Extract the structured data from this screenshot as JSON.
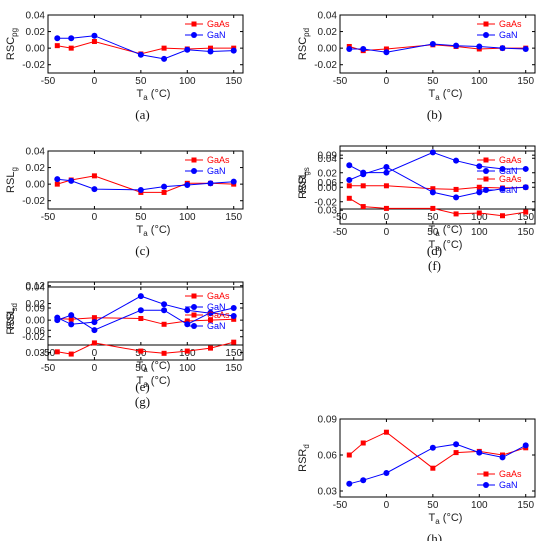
{
  "colors": {
    "GaAs": "#ff0000",
    "GaN": "#0000ff"
  },
  "chart_data": [
    {
      "panel": "(a)",
      "type": "line",
      "ylabel_main": "RSC",
      "ylabel_sub": "pg",
      "xlabel_main": "T",
      "xlabel_sub": "a",
      "xlabel_unit": " (°C)",
      "xlim": [
        -50,
        160
      ],
      "xticks": [
        -50,
        0,
        50,
        100,
        150
      ],
      "xtick_labels": [
        "-50",
        "0",
        "50",
        "100",
        "150"
      ],
      "ylim": [
        -0.03,
        0.04
      ],
      "yticks": [
        -0.02,
        0,
        0.02,
        0.04
      ],
      "ytick_labels": [
        "-0.02",
        "0.00",
        "0.02",
        "0.04"
      ],
      "legend": "top-right",
      "series": [
        {
          "name": "GaAs",
          "marker": "square",
          "x": [
            -40,
            -25,
            0,
            50,
            75,
            100,
            125,
            150
          ],
          "y": [
            0.003,
            0.0,
            0.008,
            -0.007,
            0.0,
            -0.001,
            0.0,
            0.0
          ]
        },
        {
          "name": "GaN",
          "marker": "circle",
          "x": [
            -40,
            -25,
            0,
            50,
            75,
            100,
            125,
            150
          ],
          "y": [
            0.012,
            0.012,
            0.015,
            -0.008,
            -0.013,
            -0.002,
            -0.004,
            -0.003
          ]
        }
      ]
    },
    {
      "panel": "(b)",
      "type": "line",
      "ylabel_main": "RSC",
      "ylabel_sub": "pd",
      "xlabel_main": "T",
      "xlabel_sub": "a",
      "xlabel_unit": " (°C)",
      "xlim": [
        -50,
        160
      ],
      "xticks": [
        -50,
        0,
        50,
        100,
        150
      ],
      "xtick_labels": [
        "-50",
        "0",
        "50",
        "100",
        "150"
      ],
      "ylim": [
        -0.03,
        0.04
      ],
      "yticks": [
        -0.02,
        0,
        0.02,
        0.04
      ],
      "ytick_labels": [
        "-0.02",
        "0.00",
        "0.02",
        "0.04"
      ],
      "legend": "top-right",
      "series": [
        {
          "name": "GaAs",
          "marker": "square",
          "x": [
            -40,
            -25,
            0,
            50,
            75,
            100,
            125,
            150
          ],
          "y": [
            0.002,
            -0.003,
            -0.001,
            0.004,
            0.002,
            -0.001,
            0.0,
            0.0
          ]
        },
        {
          "name": "GaN",
          "marker": "circle",
          "x": [
            -40,
            -25,
            0,
            50,
            75,
            100,
            125,
            150
          ],
          "y": [
            -0.001,
            -0.001,
            -0.005,
            0.005,
            0.003,
            0.002,
            0.0,
            -0.001
          ]
        }
      ]
    },
    {
      "panel": "(c)",
      "type": "line",
      "ylabel_main": "RSL",
      "ylabel_sub": "g",
      "xlabel_main": "T",
      "xlabel_sub": "a",
      "xlabel_unit": " (°C)",
      "xlim": [
        -50,
        160
      ],
      "xticks": [
        -50,
        0,
        50,
        100,
        150
      ],
      "xtick_labels": [
        "-50",
        "0",
        "50",
        "100",
        "150"
      ],
      "ylim": [
        -0.03,
        0.04
      ],
      "yticks": [
        -0.02,
        0,
        0.02,
        0.04
      ],
      "ytick_labels": [
        "-0.02",
        "0.00",
        "0.02",
        "0.04"
      ],
      "legend": "top-right",
      "series": [
        {
          "name": "GaAs",
          "marker": "square",
          "x": [
            -40,
            -25,
            0,
            50,
            75,
            100,
            125,
            150
          ],
          "y": [
            0.0,
            0.005,
            0.01,
            -0.01,
            -0.01,
            0.001,
            0.001,
            0.0
          ]
        },
        {
          "name": "GaN",
          "marker": "circle",
          "x": [
            -40,
            -25,
            0,
            50,
            75,
            100,
            125,
            150
          ],
          "y": [
            0.006,
            0.004,
            -0.006,
            -0.007,
            -0.003,
            -0.001,
            0.001,
            0.003
          ]
        }
      ]
    },
    {
      "panel": "(d)",
      "type": "line",
      "ylabel_main": "RSL",
      "ylabel_sub": "s",
      "xlabel_main": "T",
      "xlabel_sub": "a",
      "xlabel_unit": " (°C)",
      "xlim": [
        -50,
        160
      ],
      "xticks": [
        -50,
        0,
        50,
        100,
        150
      ],
      "xtick_labels": [
        "-50",
        "0",
        "50",
        "100",
        "150"
      ],
      "ylim": [
        -0.03,
        0.05
      ],
      "yticks": [
        -0.02,
        0,
        0.02,
        0.04
      ],
      "ytick_labels": [
        "-0.02",
        "0.00",
        "0.02",
        "0.04"
      ],
      "legend": "top-right",
      "series": [
        {
          "name": "GaAs",
          "marker": "square",
          "x": [
            -40,
            -25,
            0,
            50,
            75,
            100,
            125,
            150
          ],
          "y": [
            0.002,
            0.002,
            0.002,
            -0.002,
            -0.003,
            0.0,
            -0.001,
            0.0
          ]
        },
        {
          "name": "GaN",
          "marker": "circle",
          "x": [
            -40,
            -25,
            0,
            50,
            75,
            100,
            125,
            150
          ],
          "y": [
            0.01,
            0.018,
            0.028,
            -0.007,
            -0.014,
            -0.007,
            -0.002,
            0.0
          ]
        }
      ]
    },
    {
      "panel": "(e)",
      "type": "line",
      "ylabel_main": "RSL",
      "ylabel_sub": "d",
      "xlabel_main": "T",
      "xlabel_sub": "a",
      "xlabel_unit": " (°C)",
      "xlim": [
        -50,
        160
      ],
      "xticks": [
        -50,
        0,
        50,
        100,
        150
      ],
      "xtick_labels": [
        "-50",
        "0",
        "50",
        "100",
        "150"
      ],
      "ylim": [
        -0.03,
        0.04
      ],
      "yticks": [
        -0.02,
        0,
        0.02,
        0.04
      ],
      "ytick_labels": [
        "-0.02",
        "0.00",
        "0.02",
        "0.04"
      ],
      "legend": "top-right",
      "series": [
        {
          "name": "GaAs",
          "marker": "square",
          "x": [
            -40,
            -25,
            0,
            50,
            75,
            100,
            125,
            150
          ],
          "y": [
            0.002,
            0.001,
            0.003,
            0.002,
            -0.005,
            -0.001,
            0.0,
            0.001
          ]
        },
        {
          "name": "GaN",
          "marker": "circle",
          "x": [
            -40,
            -25,
            0,
            50,
            75,
            100,
            125,
            150
          ],
          "y": [
            0.0,
            0.006,
            -0.012,
            0.012,
            0.012,
            -0.005,
            0.009,
            0.005
          ]
        }
      ]
    },
    {
      "panel": "(f)",
      "type": "line",
      "ylabel_main": "RSR",
      "ylabel_sub": "g",
      "xlabel_main": "T",
      "xlabel_sub": "a",
      "xlabel_unit": " (°C)",
      "xlim": [
        -50,
        160
      ],
      "xticks": [
        -50,
        0,
        50,
        100,
        150
      ],
      "xtick_labels": [
        "-50",
        "0",
        "50",
        "100",
        "150"
      ],
      "ylim": [
        0.015,
        0.1
      ],
      "yticks": [
        0.03,
        0.06,
        0.09
      ],
      "ytick_labels": [
        "0.03",
        "0.06",
        "0.09"
      ],
      "legend": "middle-right",
      "series": [
        {
          "name": "GaAs",
          "marker": "square",
          "x": [
            -40,
            -25,
            0,
            50,
            75,
            100,
            125,
            150
          ],
          "y": [
            0.043,
            0.034,
            0.032,
            0.032,
            0.026,
            0.027,
            0.024,
            0.028
          ]
        },
        {
          "name": "GaN",
          "marker": "circle",
          "x": [
            -40,
            -25,
            0,
            50,
            75,
            100,
            125,
            150
          ],
          "y": [
            0.079,
            0.071,
            0.071,
            0.093,
            0.084,
            0.078,
            0.075,
            0.075
          ]
        }
      ]
    },
    {
      "panel": "(g)",
      "type": "line",
      "ylabel_main": "RSR",
      "ylabel_sub": "s",
      "xlabel_main": "T",
      "xlabel_sub": "a",
      "xlabel_unit": " (°C)",
      "xlim": [
        -50,
        160
      ],
      "xticks": [
        -50,
        0,
        50,
        100,
        150
      ],
      "xtick_labels": [
        "-50",
        "0",
        "50",
        "100",
        "150"
      ],
      "ylim": [
        0.02,
        0.125
      ],
      "yticks": [
        0.03,
        0.06,
        0.09,
        0.12
      ],
      "ytick_labels": [
        "0.03",
        "0.06",
        "0.09",
        "0.12"
      ],
      "legend": "middle-right",
      "series": [
        {
          "name": "GaAs",
          "marker": "square",
          "x": [
            -40,
            -25,
            0,
            50,
            75,
            100,
            125,
            150
          ],
          "y": [
            0.031,
            0.028,
            0.043,
            0.032,
            0.029,
            0.032,
            0.036,
            0.044
          ]
        },
        {
          "name": "GaN",
          "marker": "circle",
          "x": [
            -40,
            -25,
            0,
            50,
            75,
            100,
            125,
            150
          ],
          "y": [
            0.077,
            0.068,
            0.071,
            0.106,
            0.095,
            0.087,
            0.083,
            0.09
          ]
        }
      ]
    },
    {
      "panel": "(h)",
      "type": "line",
      "ylabel_main": "RSR",
      "ylabel_sub": "d",
      "xlabel_main": "T",
      "xlabel_sub": "a",
      "xlabel_unit": " (°C)",
      "xlim": [
        -50,
        160
      ],
      "xticks": [
        -50,
        0,
        50,
        100,
        150
      ],
      "xtick_labels": [
        "-50",
        "0",
        "50",
        "100",
        "150"
      ],
      "ylim": [
        0.025,
        0.09
      ],
      "yticks": [
        0.03,
        0.06,
        0.09
      ],
      "ytick_labels": [
        "0.03",
        "0.06",
        "0.09"
      ],
      "legend": "bottom-right",
      "series": [
        {
          "name": "GaAs",
          "marker": "square",
          "x": [
            -40,
            -25,
            0,
            50,
            75,
            100,
            125,
            150
          ],
          "y": [
            0.06,
            0.07,
            0.079,
            0.049,
            0.062,
            0.063,
            0.06,
            0.066
          ]
        },
        {
          "name": "GaN",
          "marker": "circle",
          "x": [
            -40,
            -25,
            0,
            50,
            75,
            100,
            125,
            150
          ],
          "y": [
            0.036,
            0.039,
            0.045,
            0.066,
            0.069,
            0.062,
            0.058,
            0.068
          ]
        }
      ]
    }
  ]
}
